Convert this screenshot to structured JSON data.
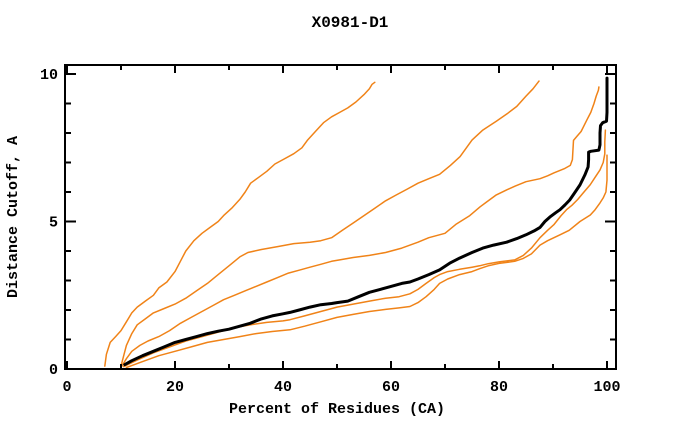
{
  "figure": {
    "title": "X0981-D1"
  },
  "chart_data": {
    "type": "line",
    "title": "X0981-D1",
    "xlabel": "Percent of Residues (CA)",
    "ylabel": "Distance Cutoff, A",
    "xlim": [
      0,
      100
    ],
    "ylim": [
      0,
      10
    ],
    "grid": false,
    "legend": "none",
    "x_major_ticks": [
      0,
      20,
      40,
      60,
      80,
      100
    ],
    "x_minor_ticks": [
      10,
      30,
      50,
      70,
      90
    ],
    "y_major_ticks": [
      0,
      5,
      10
    ],
    "y_minor_ticks": [
      1,
      2,
      3,
      4,
      6,
      7,
      8,
      9
    ],
    "x_tick_labels": [
      "0",
      "20",
      "40",
      "60",
      "80",
      "100"
    ],
    "y_tick_labels": [
      "0",
      "5",
      "10"
    ],
    "colors": {
      "model_curve": "#000000",
      "reference_curves": "#f08318"
    },
    "series": [
      {
        "name": "orange-curve-1-steepest",
        "color": "#f08318",
        "width": 1.5,
        "points": [
          [
            7,
            0.1
          ],
          [
            7.3,
            0.5
          ],
          [
            8,
            0.9
          ],
          [
            9,
            1.1
          ],
          [
            10,
            1.3
          ],
          [
            11,
            1.6
          ],
          [
            12,
            1.9
          ],
          [
            13,
            2.1
          ],
          [
            14.5,
            2.3
          ],
          [
            16,
            2.5
          ],
          [
            17,
            2.75
          ],
          [
            18.5,
            2.95
          ],
          [
            20,
            3.3
          ],
          [
            21,
            3.65
          ],
          [
            22,
            4
          ],
          [
            23.5,
            4.35
          ],
          [
            25,
            4.6
          ],
          [
            26.5,
            4.8
          ],
          [
            28,
            5
          ],
          [
            29,
            5.2
          ],
          [
            30.5,
            5.45
          ],
          [
            32,
            5.75
          ],
          [
            33,
            6
          ],
          [
            34,
            6.3
          ],
          [
            35.5,
            6.5
          ],
          [
            37,
            6.7
          ],
          [
            38.5,
            6.95
          ],
          [
            40,
            7.1
          ],
          [
            42,
            7.3
          ],
          [
            43.5,
            7.5
          ],
          [
            44.5,
            7.75
          ],
          [
            46,
            8.05
          ],
          [
            47.5,
            8.35
          ],
          [
            49,
            8.55
          ],
          [
            50.5,
            8.7
          ],
          [
            52,
            8.85
          ],
          [
            53.5,
            9.05
          ],
          [
            55,
            9.3
          ],
          [
            56,
            9.5
          ],
          [
            56.5,
            9.65
          ],
          [
            57,
            9.72
          ]
        ]
      },
      {
        "name": "orange-curve-2",
        "color": "#f08318",
        "width": 1.5,
        "points": [
          [
            10,
            0.1
          ],
          [
            10.5,
            0.45
          ],
          [
            11,
            0.8
          ],
          [
            12,
            1.2
          ],
          [
            13,
            1.5
          ],
          [
            14.5,
            1.7
          ],
          [
            16,
            1.9
          ],
          [
            18,
            2.05
          ],
          [
            20,
            2.2
          ],
          [
            22,
            2.4
          ],
          [
            24,
            2.65
          ],
          [
            26,
            2.9
          ],
          [
            28,
            3.2
          ],
          [
            30,
            3.5
          ],
          [
            32,
            3.8
          ],
          [
            33.5,
            3.95
          ],
          [
            36,
            4.05
          ],
          [
            39,
            4.15
          ],
          [
            42,
            4.25
          ],
          [
            45,
            4.3
          ],
          [
            47,
            4.35
          ],
          [
            49,
            4.45
          ],
          [
            51,
            4.7
          ],
          [
            53,
            4.95
          ],
          [
            55,
            5.2
          ],
          [
            57,
            5.45
          ],
          [
            59,
            5.7
          ],
          [
            61,
            5.9
          ],
          [
            63,
            6.1
          ],
          [
            65,
            6.3
          ],
          [
            67,
            6.45
          ],
          [
            69,
            6.6
          ],
          [
            71,
            6.9
          ],
          [
            72.8,
            7.2
          ],
          [
            75,
            7.76
          ],
          [
            77,
            8.1
          ],
          [
            79.5,
            8.4
          ],
          [
            81.5,
            8.65
          ],
          [
            83.3,
            8.9
          ],
          [
            85,
            9.25
          ],
          [
            86.3,
            9.5
          ],
          [
            87.4,
            9.76
          ]
        ]
      },
      {
        "name": "orange-curve-3",
        "color": "#f08318",
        "width": 1.5,
        "points": [
          [
            10,
            0.05
          ],
          [
            11,
            0.35
          ],
          [
            12,
            0.6
          ],
          [
            13.5,
            0.8
          ],
          [
            15,
            0.95
          ],
          [
            17,
            1.1
          ],
          [
            19,
            1.3
          ],
          [
            21,
            1.55
          ],
          [
            23,
            1.75
          ],
          [
            25,
            1.95
          ],
          [
            27,
            2.15
          ],
          [
            29,
            2.35
          ],
          [
            31,
            2.5
          ],
          [
            33,
            2.65
          ],
          [
            35,
            2.8
          ],
          [
            37,
            2.95
          ],
          [
            39,
            3.1
          ],
          [
            41,
            3.25
          ],
          [
            43,
            3.35
          ],
          [
            45,
            3.45
          ],
          [
            47,
            3.55
          ],
          [
            49,
            3.65
          ],
          [
            50.5,
            3.7
          ],
          [
            53,
            3.78
          ],
          [
            56,
            3.85
          ],
          [
            59,
            3.95
          ],
          [
            62,
            4.1
          ],
          [
            65,
            4.3
          ],
          [
            67,
            4.45
          ],
          [
            70,
            4.6
          ],
          [
            72,
            4.9
          ],
          [
            74.6,
            5.2
          ],
          [
            76.5,
            5.5
          ],
          [
            77.7,
            5.66
          ],
          [
            79.5,
            5.9
          ],
          [
            81.4,
            6.07
          ],
          [
            83,
            6.2
          ],
          [
            85,
            6.35
          ],
          [
            87.6,
            6.45
          ],
          [
            89,
            6.55
          ],
          [
            90.2,
            6.65
          ],
          [
            92.2,
            6.8
          ],
          [
            93.2,
            6.9
          ],
          [
            93.6,
            7.1
          ],
          [
            93.8,
            7.75
          ],
          [
            94.5,
            7.9
          ],
          [
            95.2,
            8.05
          ],
          [
            96.3,
            8.45
          ],
          [
            97,
            8.7
          ],
          [
            97.6,
            9
          ],
          [
            98,
            9.25
          ],
          [
            98.4,
            9.45
          ],
          [
            98.5,
            9.56
          ]
        ]
      },
      {
        "name": "orange-curve-4",
        "color": "#f08318",
        "width": 1.5,
        "points": [
          [
            10.5,
            0.08
          ],
          [
            13,
            0.3
          ],
          [
            16,
            0.55
          ],
          [
            19,
            0.75
          ],
          [
            22,
            0.95
          ],
          [
            25,
            1.1
          ],
          [
            28,
            1.25
          ],
          [
            31,
            1.4
          ],
          [
            34,
            1.5
          ],
          [
            37,
            1.58
          ],
          [
            40,
            1.63
          ],
          [
            41.3,
            1.67
          ],
          [
            44,
            1.8
          ],
          [
            47,
            1.95
          ],
          [
            50,
            2.1
          ],
          [
            53,
            2.2
          ],
          [
            56,
            2.3
          ],
          [
            59,
            2.4
          ],
          [
            61.5,
            2.45
          ],
          [
            63.5,
            2.55
          ],
          [
            65,
            2.7
          ],
          [
            66.5,
            2.9
          ],
          [
            68,
            3.1
          ],
          [
            69,
            3.2
          ],
          [
            70.5,
            3.3
          ],
          [
            72.7,
            3.38
          ],
          [
            75,
            3.45
          ],
          [
            76.4,
            3.5
          ],
          [
            78,
            3.57
          ],
          [
            80,
            3.63
          ],
          [
            82.9,
            3.7
          ],
          [
            84.5,
            3.85
          ],
          [
            86,
            4.1
          ],
          [
            87.6,
            4.45
          ],
          [
            89,
            4.7
          ],
          [
            90.2,
            4.9
          ],
          [
            91.5,
            5.2
          ],
          [
            92.5,
            5.4
          ],
          [
            93.5,
            5.55
          ],
          [
            94.6,
            5.75
          ],
          [
            95.5,
            5.95
          ],
          [
            96.9,
            6.25
          ],
          [
            97.8,
            6.5
          ],
          [
            98.7,
            6.75
          ],
          [
            99.3,
            7
          ],
          [
            99.6,
            7.3
          ],
          [
            99.6,
            7.7
          ],
          [
            99.7,
            8.1
          ]
        ]
      },
      {
        "name": "orange-curve-5-lowest",
        "color": "#f08318",
        "width": 1.5,
        "points": [
          [
            11,
            0.05
          ],
          [
            14,
            0.25
          ],
          [
            17,
            0.45
          ],
          [
            20,
            0.6
          ],
          [
            23,
            0.75
          ],
          [
            26,
            0.9
          ],
          [
            29,
            1
          ],
          [
            32,
            1.1
          ],
          [
            35,
            1.2
          ],
          [
            38,
            1.27
          ],
          [
            41.3,
            1.33
          ],
          [
            44,
            1.45
          ],
          [
            47,
            1.6
          ],
          [
            50,
            1.75
          ],
          [
            53,
            1.85
          ],
          [
            56,
            1.95
          ],
          [
            59,
            2.02
          ],
          [
            61.5,
            2.07
          ],
          [
            63.5,
            2.12
          ],
          [
            65,
            2.25
          ],
          [
            66.5,
            2.45
          ],
          [
            68,
            2.7
          ],
          [
            69,
            2.9
          ],
          [
            70.5,
            3.05
          ],
          [
            72.7,
            3.2
          ],
          [
            75,
            3.3
          ],
          [
            76.4,
            3.4
          ],
          [
            78,
            3.5
          ],
          [
            80,
            3.58
          ],
          [
            82.9,
            3.65
          ],
          [
            84.5,
            3.75
          ],
          [
            86,
            3.9
          ],
          [
            87.6,
            4.2
          ],
          [
            89,
            4.35
          ],
          [
            91.3,
            4.55
          ],
          [
            93,
            4.7
          ],
          [
            95,
            5
          ],
          [
            96.9,
            5.22
          ],
          [
            97.8,
            5.4
          ],
          [
            98.7,
            5.63
          ],
          [
            99.3,
            5.8
          ],
          [
            99.8,
            6
          ],
          [
            100,
            6.4
          ],
          [
            100,
            6.8
          ],
          [
            100,
            7.25
          ]
        ]
      },
      {
        "name": "black-model-curve",
        "color": "#000000",
        "width": 3,
        "points": [
          [
            10.7,
            0.15
          ],
          [
            12,
            0.28
          ],
          [
            14,
            0.45
          ],
          [
            16,
            0.6
          ],
          [
            18,
            0.75
          ],
          [
            20,
            0.9
          ],
          [
            22,
            1
          ],
          [
            24,
            1.1
          ],
          [
            26,
            1.2
          ],
          [
            28,
            1.28
          ],
          [
            30,
            1.35
          ],
          [
            32,
            1.45
          ],
          [
            33.9,
            1.55
          ],
          [
            36,
            1.7
          ],
          [
            38,
            1.8
          ],
          [
            40,
            1.87
          ],
          [
            41.3,
            1.92
          ],
          [
            43,
            2
          ],
          [
            45,
            2.1
          ],
          [
            47,
            2.18
          ],
          [
            49,
            2.22
          ],
          [
            50,
            2.25
          ],
          [
            52,
            2.3
          ],
          [
            54,
            2.45
          ],
          [
            56,
            2.6
          ],
          [
            58,
            2.7
          ],
          [
            60,
            2.8
          ],
          [
            62,
            2.9
          ],
          [
            63.5,
            2.95
          ],
          [
            65,
            3.05
          ],
          [
            67,
            3.2
          ],
          [
            69,
            3.36
          ],
          [
            71,
            3.6
          ],
          [
            72.7,
            3.76
          ],
          [
            75,
            3.95
          ],
          [
            77,
            4.1
          ],
          [
            79,
            4.2
          ],
          [
            81.4,
            4.3
          ],
          [
            83.3,
            4.42
          ],
          [
            85,
            4.55
          ],
          [
            86.5,
            4.68
          ],
          [
            87.6,
            4.8
          ],
          [
            88.5,
            5
          ],
          [
            89.4,
            5.15
          ],
          [
            90.5,
            5.3
          ],
          [
            91.3,
            5.4
          ],
          [
            92.2,
            5.56
          ],
          [
            93.1,
            5.73
          ],
          [
            94,
            5.97
          ],
          [
            95,
            6.24
          ],
          [
            95.9,
            6.58
          ],
          [
            96.5,
            6.85
          ],
          [
            96.6,
            7.1
          ],
          [
            96.6,
            7.35
          ],
          [
            97,
            7.38
          ],
          [
            98.5,
            7.42
          ],
          [
            98.7,
            7.6
          ],
          [
            98.7,
            8
          ],
          [
            98.8,
            8.25
          ],
          [
            99.2,
            8.35
          ],
          [
            99.9,
            8.4
          ],
          [
            100,
            8.7
          ],
          [
            100,
            9.2
          ],
          [
            100,
            9.86
          ]
        ]
      }
    ]
  }
}
